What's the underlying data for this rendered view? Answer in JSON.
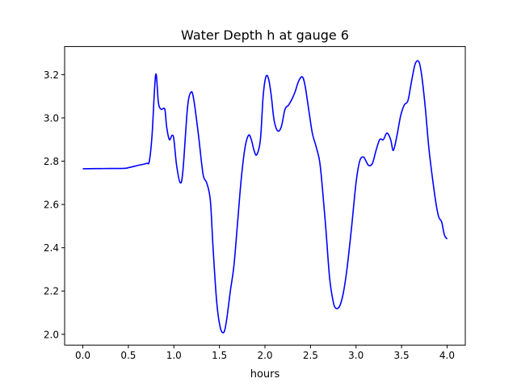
{
  "chart_data": {
    "type": "line",
    "title": "Water Depth h at gauge 6",
    "xlabel": "hours",
    "ylabel": "",
    "xlim": [
      -0.2,
      4.2
    ],
    "ylim": [
      1.95,
      3.33
    ],
    "xticks": [
      0.0,
      0.5,
      1.0,
      1.5,
      2.0,
      2.5,
      3.0,
      3.5,
      4.0
    ],
    "xtick_labels": [
      "0.0",
      "0.5",
      "1.0",
      "1.5",
      "2.0",
      "2.5",
      "3.0",
      "3.5",
      "4.0"
    ],
    "yticks": [
      2.0,
      2.2,
      2.4,
      2.6,
      2.8,
      3.0,
      3.2
    ],
    "ytick_labels": [
      "2.0",
      "2.2",
      "2.4",
      "2.6",
      "2.8",
      "3.0",
      "3.2"
    ],
    "grid": false,
    "legend": false,
    "series": [
      {
        "name": "",
        "color": "#0000ff",
        "x": [
          0.0,
          0.2,
          0.45,
          0.5,
          0.6,
          0.7,
          0.73,
          0.76,
          0.8,
          0.83,
          0.86,
          0.9,
          0.92,
          0.95,
          0.98,
          1.0,
          1.03,
          1.07,
          1.1,
          1.15,
          1.19,
          1.22,
          1.27,
          1.32,
          1.36,
          1.4,
          1.43,
          1.47,
          1.51,
          1.55,
          1.58,
          1.62,
          1.66,
          1.7,
          1.74,
          1.78,
          1.82,
          1.85,
          1.88,
          1.91,
          1.95,
          1.98,
          2.01,
          2.04,
          2.07,
          2.1,
          2.14,
          2.18,
          2.22,
          2.26,
          2.3,
          2.33,
          2.37,
          2.41,
          2.44,
          2.48,
          2.52,
          2.56,
          2.6,
          2.63,
          2.67,
          2.71,
          2.75,
          2.78,
          2.82,
          2.86,
          2.9,
          2.95,
          3.0,
          3.04,
          3.08,
          3.11,
          3.14,
          3.18,
          3.22,
          3.26,
          3.3,
          3.34,
          3.38,
          3.41,
          3.45,
          3.49,
          3.53,
          3.57,
          3.61,
          3.65,
          3.69,
          3.72,
          3.76,
          3.8,
          3.84,
          3.88,
          3.91,
          3.94,
          3.97,
          4.0
        ],
        "y": [
          2.765,
          2.766,
          2.767,
          2.77,
          2.78,
          2.79,
          2.8,
          2.92,
          3.2,
          3.07,
          3.04,
          3.04,
          2.96,
          2.9,
          2.92,
          2.9,
          2.78,
          2.7,
          2.76,
          3.05,
          3.12,
          3.08,
          2.92,
          2.74,
          2.7,
          2.62,
          2.4,
          2.15,
          2.03,
          2.01,
          2.07,
          2.2,
          2.32,
          2.52,
          2.72,
          2.86,
          2.92,
          2.9,
          2.85,
          2.83,
          2.9,
          3.1,
          3.19,
          3.18,
          3.1,
          2.99,
          2.94,
          2.96,
          3.04,
          3.06,
          3.09,
          3.12,
          3.17,
          3.19,
          3.15,
          3.04,
          2.93,
          2.87,
          2.8,
          2.68,
          2.48,
          2.26,
          2.15,
          2.12,
          2.13,
          2.19,
          2.3,
          2.49,
          2.7,
          2.8,
          2.82,
          2.8,
          2.78,
          2.79,
          2.85,
          2.9,
          2.9,
          2.93,
          2.9,
          2.85,
          2.92,
          3.01,
          3.06,
          3.08,
          3.17,
          3.25,
          3.26,
          3.2,
          3.05,
          2.86,
          2.72,
          2.6,
          2.54,
          2.52,
          2.46,
          2.44
        ]
      }
    ]
  }
}
